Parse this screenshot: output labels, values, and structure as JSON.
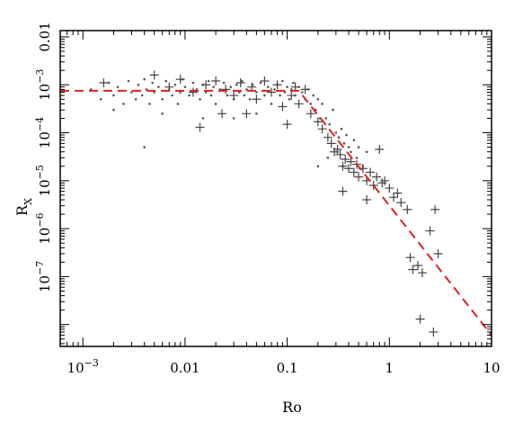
{
  "chart_data": {
    "type": "scatter",
    "title": "",
    "xlabel": "Ro",
    "ylabel_main": "R",
    "ylabel_sub": "X",
    "x_scale": "log",
    "y_scale": "log",
    "xlim": [
      0.0006,
      10
    ],
    "ylim": [
      3.5e-09,
      0.0135
    ],
    "x_ticks": [
      {
        "value": 0.001,
        "base": "10",
        "exp": "−3",
        "text": ""
      },
      {
        "value": 0.01,
        "base": "",
        "exp": "",
        "text": "0.01"
      },
      {
        "value": 0.1,
        "base": "",
        "exp": "",
        "text": "0.1"
      },
      {
        "value": 1,
        "base": "",
        "exp": "",
        "text": "1"
      },
      {
        "value": 10,
        "base": "",
        "exp": "",
        "text": "10"
      }
    ],
    "y_ticks": [
      {
        "value": 0.01,
        "base": "",
        "exp": "",
        "text": "0.01"
      },
      {
        "value": 0.001,
        "base": "10",
        "exp": "−3",
        "text": ""
      },
      {
        "value": 0.0001,
        "base": "10",
        "exp": "−4",
        "text": ""
      },
      {
        "value": 1e-05,
        "base": "10",
        "exp": "−5",
        "text": ""
      },
      {
        "value": 1e-06,
        "base": "10",
        "exp": "−6",
        "text": ""
      },
      {
        "value": 1e-07,
        "base": "10",
        "exp": "−7",
        "text": ""
      }
    ],
    "grid": false,
    "legend": "none",
    "series": [
      {
        "marker": "dot",
        "color": "#555555",
        "points": [
          [
            0.0012,
            0.0008
          ],
          [
            0.0015,
            0.0005
          ],
          [
            0.0018,
            0.0011
          ],
          [
            0.002,
            0.0006
          ],
          [
            0.0022,
            0.0009
          ],
          [
            0.0025,
            0.0004
          ],
          [
            0.0028,
            0.0012
          ],
          [
            0.003,
            0.0007
          ],
          [
            0.0033,
            0.0005
          ],
          [
            0.0035,
            0.001
          ],
          [
            0.0038,
            0.0006
          ],
          [
            0.004,
            0.0013
          ],
          [
            0.0042,
            0.0008
          ],
          [
            0.0045,
            0.0004
          ],
          [
            0.0048,
            0.0011
          ],
          [
            0.005,
            0.0007
          ],
          [
            0.0055,
            0.0009
          ],
          [
            0.006,
            0.0005
          ],
          [
            0.0065,
            0.0012
          ],
          [
            0.007,
            0.0008
          ],
          [
            0.0075,
            0.0006
          ],
          [
            0.008,
            0.001
          ],
          [
            0.0085,
            0.0004
          ],
          [
            0.009,
            0.0007
          ],
          [
            0.0095,
            0.0013
          ],
          [
            0.01,
            0.0009
          ],
          [
            0.011,
            0.0006
          ],
          [
            0.012,
            0.0011
          ],
          [
            0.013,
            0.0008
          ],
          [
            0.014,
            0.0005
          ],
          [
            0.015,
            0.001
          ],
          [
            0.016,
            0.0007
          ],
          [
            0.017,
            0.0012
          ],
          [
            0.018,
            0.0006
          ],
          [
            0.019,
            0.0009
          ],
          [
            0.02,
            0.0004
          ],
          [
            0.022,
            0.0008
          ],
          [
            0.024,
            0.0011
          ],
          [
            0.026,
            0.0006
          ],
          [
            0.028,
            0.0009
          ],
          [
            0.03,
            0.0005
          ],
          [
            0.032,
            0.001
          ],
          [
            0.034,
            0.0007
          ],
          [
            0.036,
            0.0012
          ],
          [
            0.038,
            0.0006
          ],
          [
            0.04,
            0.0008
          ],
          [
            0.043,
            0.0005
          ],
          [
            0.046,
            0.001
          ],
          [
            0.05,
            0.0007
          ],
          [
            0.055,
            0.0011
          ],
          [
            0.06,
            0.0006
          ],
          [
            0.065,
            0.0009
          ],
          [
            0.07,
            0.0004
          ],
          [
            0.075,
            0.0008
          ],
          [
            0.08,
            0.001
          ],
          [
            0.085,
            0.0006
          ],
          [
            0.09,
            0.0012
          ],
          [
            0.095,
            0.0007
          ],
          [
            0.1,
            0.0009
          ],
          [
            0.105,
            0.0005
          ],
          [
            0.11,
            0.0008
          ],
          [
            0.115,
            0.0011
          ],
          [
            0.12,
            0.0006
          ],
          [
            0.13,
            0.0009
          ],
          [
            0.14,
            0.0007
          ],
          [
            0.15,
            0.0005
          ],
          [
            0.16,
            0.0008
          ],
          [
            0.17,
            0.0004
          ],
          [
            0.18,
            0.0006
          ],
          [
            0.19,
            0.0003
          ],
          [
            0.2,
            0.0005
          ],
          [
            0.21,
            0.0002
          ],
          [
            0.22,
            0.0004
          ],
          [
            0.24,
            0.0002
          ],
          [
            0.26,
            0.00015
          ],
          [
            0.28,
            0.0003
          ],
          [
            0.3,
            0.0001
          ],
          [
            0.32,
            8e-05
          ],
          [
            0.34,
            0.00012
          ],
          [
            0.36,
            6e-05
          ],
          [
            0.38,
            9e-05
          ],
          [
            0.4,
            5e-05
          ],
          [
            0.42,
            4e-05
          ],
          [
            0.45,
            7e-05
          ],
          [
            0.48,
            3e-05
          ],
          [
            0.5,
            5e-05
          ],
          [
            0.55,
            2e-05
          ],
          [
            0.6,
            4e-05
          ],
          [
            0.002,
            0.0003
          ],
          [
            0.004,
            5e-05
          ],
          [
            0.006,
            0.00025
          ],
          [
            0.015,
            0.0002
          ],
          [
            0.03,
            0.0002
          ],
          [
            0.05,
            0.00025
          ],
          [
            0.2,
            2e-05
          ],
          [
            0.25,
            3e-05
          ],
          [
            0.35,
            2e-05
          ]
        ]
      },
      {
        "marker": "plus",
        "color": "#444444",
        "points": [
          [
            0.0016,
            0.0011
          ],
          [
            0.005,
            0.0016
          ],
          [
            0.007,
            0.0009
          ],
          [
            0.009,
            0.0013
          ],
          [
            0.012,
            0.0007
          ],
          [
            0.014,
            0.00013
          ],
          [
            0.016,
            0.001
          ],
          [
            0.02,
            0.0012
          ],
          [
            0.023,
            0.00025
          ],
          [
            0.025,
            0.0008
          ],
          [
            0.03,
            0.0006
          ],
          [
            0.035,
            0.0011
          ],
          [
            0.04,
            0.00025
          ],
          [
            0.045,
            0.0009
          ],
          [
            0.05,
            0.0005
          ],
          [
            0.06,
            0.0012
          ],
          [
            0.07,
            0.0007
          ],
          [
            0.08,
            0.001
          ],
          [
            0.09,
            0.00035
          ],
          [
            0.1,
            0.00015
          ],
          [
            0.11,
            0.0006
          ],
          [
            0.12,
            0.0009
          ],
          [
            0.13,
            0.0004
          ],
          [
            0.15,
            0.0008
          ],
          [
            0.17,
            0.00025
          ],
          [
            0.2,
            0.00017
          ],
          [
            0.22,
            0.00012
          ],
          [
            0.25,
            8e-05
          ],
          [
            0.27,
            6e-05
          ],
          [
            0.29,
            4e-05
          ],
          [
            0.31,
            4.5e-05
          ],
          [
            0.33,
            3.5e-05
          ],
          [
            0.35,
            2e-05
          ],
          [
            0.37,
            2.8e-05
          ],
          [
            0.4,
            1.8e-05
          ],
          [
            0.42,
            2.5e-05
          ],
          [
            0.45,
            1.5e-05
          ],
          [
            0.48,
            2.2e-05
          ],
          [
            0.5,
            1.2e-05
          ],
          [
            0.55,
            1.8e-05
          ],
          [
            0.6,
            1e-05
          ],
          [
            0.65,
            1.5e-05
          ],
          [
            0.7,
            8e-06
          ],
          [
            0.75,
            1.2e-05
          ],
          [
            0.8,
            4.5e-05
          ],
          [
            0.85,
            9e-06
          ],
          [
            0.9,
            1e-05
          ],
          [
            1.0,
            7e-06
          ],
          [
            1.1,
            4.5e-06
          ],
          [
            1.2,
            5.5e-06
          ],
          [
            1.3,
            3.5e-06
          ],
          [
            1.5,
            2.5e-06
          ],
          [
            1.7,
            1.4e-07
          ],
          [
            1.9,
            1.7e-07
          ],
          [
            2.1,
            1.2e-07
          ],
          [
            2.5,
            9e-07
          ],
          [
            2.8,
            2.5e-06
          ],
          [
            0.35,
            6e-06
          ],
          [
            0.6,
            4e-06
          ],
          [
            1.6,
            2.5e-07
          ],
          [
            2.0,
            1.3e-08
          ],
          [
            2.7,
            7e-09
          ],
          [
            3.0,
            3e-07
          ]
        ]
      }
    ],
    "fit_line": {
      "style": "dashed",
      "color": "#e02020",
      "points": [
        [
          0.0006,
          0.00075
        ],
        [
          0.13,
          0.00075
        ],
        [
          10,
          6e-09
        ]
      ]
    }
  }
}
